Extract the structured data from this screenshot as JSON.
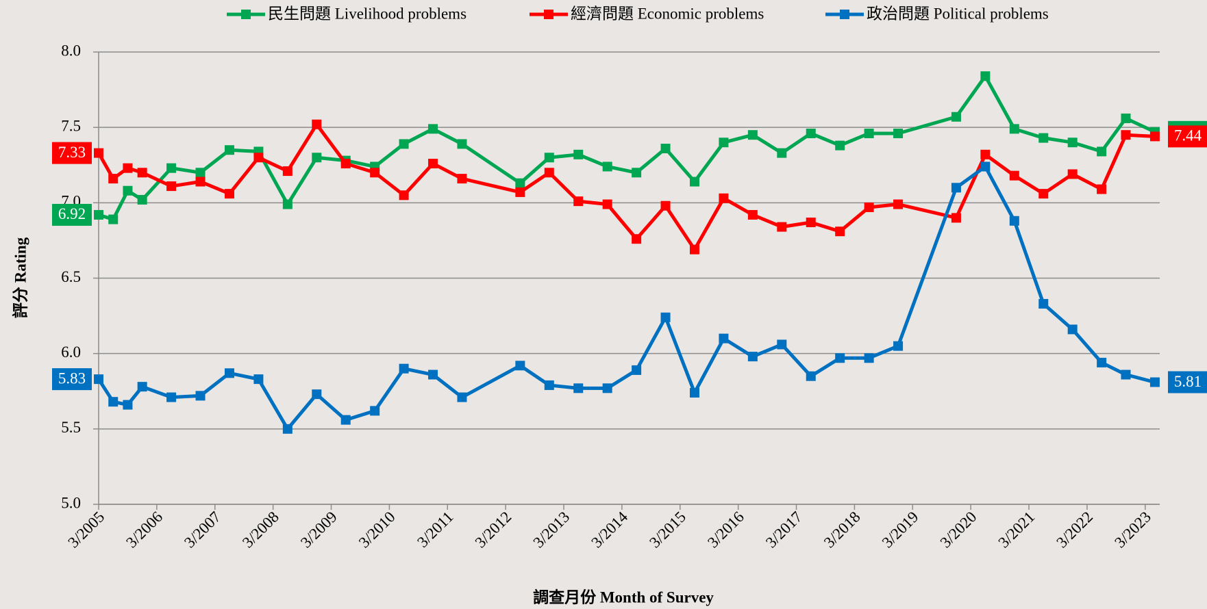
{
  "chart_data": {
    "type": "line",
    "x_label": "調查月份 Month of Survey",
    "y_label": "評分 Rating",
    "x": [
      "3/2005",
      "6/2005",
      "9/2005",
      "12/2005",
      "6/2006",
      "12/2006",
      "6/2007",
      "12/2007",
      "6/2008",
      "12/2008",
      "6/2009",
      "12/2009",
      "6/2010",
      "12/2010",
      "6/2011",
      "6/2012",
      "12/2012",
      "6/2013",
      "12/2013",
      "6/2014",
      "12/2014",
      "6/2015",
      "12/2015",
      "6/2016",
      "12/2016",
      "6/2017",
      "12/2017",
      "6/2018",
      "12/2018",
      "12/2019",
      "6/2020",
      "12/2020",
      "6/2021",
      "12/2021",
      "6/2022",
      "11/2022",
      "5/2023"
    ],
    "series": [
      {
        "name": "民生問題 Livelihood problems",
        "color": "#00a651",
        "values": [
          6.92,
          6.89,
          7.08,
          7.02,
          7.23,
          7.2,
          7.35,
          7.34,
          6.99,
          7.3,
          7.28,
          7.24,
          7.39,
          7.49,
          7.39,
          7.13,
          7.3,
          7.32,
          7.24,
          7.2,
          7.36,
          7.14,
          7.4,
          7.45,
          7.33,
          7.46,
          7.38,
          7.46,
          7.46,
          7.57,
          7.84,
          7.49,
          7.43,
          7.4,
          7.34,
          7.56,
          7.47
        ]
      },
      {
        "name": "經濟問題 Economic problems",
        "color": "#ff0000",
        "values": [
          7.33,
          7.16,
          7.23,
          7.2,
          7.11,
          7.14,
          7.06,
          7.3,
          7.21,
          7.52,
          7.26,
          7.2,
          7.05,
          7.26,
          7.16,
          7.07,
          7.2,
          7.01,
          6.99,
          6.76,
          6.98,
          6.69,
          7.03,
          6.92,
          6.84,
          6.87,
          6.81,
          6.97,
          6.99,
          6.9,
          7.32,
          7.18,
          7.06,
          7.19,
          7.09,
          7.45,
          7.44
        ]
      },
      {
        "name": "政治問題 Political problems",
        "color": "#0070c0",
        "values": [
          5.83,
          5.68,
          5.66,
          5.78,
          5.71,
          5.72,
          5.87,
          5.83,
          5.5,
          5.73,
          5.56,
          5.62,
          5.9,
          5.86,
          5.71,
          5.92,
          5.79,
          5.77,
          5.77,
          5.89,
          6.24,
          5.74,
          6.1,
          5.98,
          6.06,
          5.85,
          5.97,
          5.97,
          6.05,
          7.1,
          7.24,
          6.88,
          6.33,
          6.16,
          5.94,
          5.86,
          5.81
        ]
      }
    ],
    "xlim": [
      "3/2005",
      "6/2023"
    ],
    "xticks": [
      "3/2005",
      "3/2006",
      "3/2007",
      "3/2008",
      "3/2009",
      "3/2010",
      "3/2011",
      "3/2012",
      "3/2013",
      "3/2014",
      "3/2015",
      "3/2016",
      "3/2017",
      "3/2018",
      "3/2019",
      "3/2020",
      "3/2021",
      "3/2022",
      "3/2023"
    ],
    "ylim": [
      5.0,
      8.0
    ],
    "yticks": [
      {
        "value": 5.0,
        "label": "5.0"
      },
      5.5,
      {
        "value": 6.0,
        "label": "6.0"
      },
      6.5,
      {
        "value": 7.0,
        "label": "7.0"
      },
      7.5,
      {
        "value": 8.0,
        "label": "8.0"
      }
    ],
    "grid": true,
    "legend": "top"
  }
}
